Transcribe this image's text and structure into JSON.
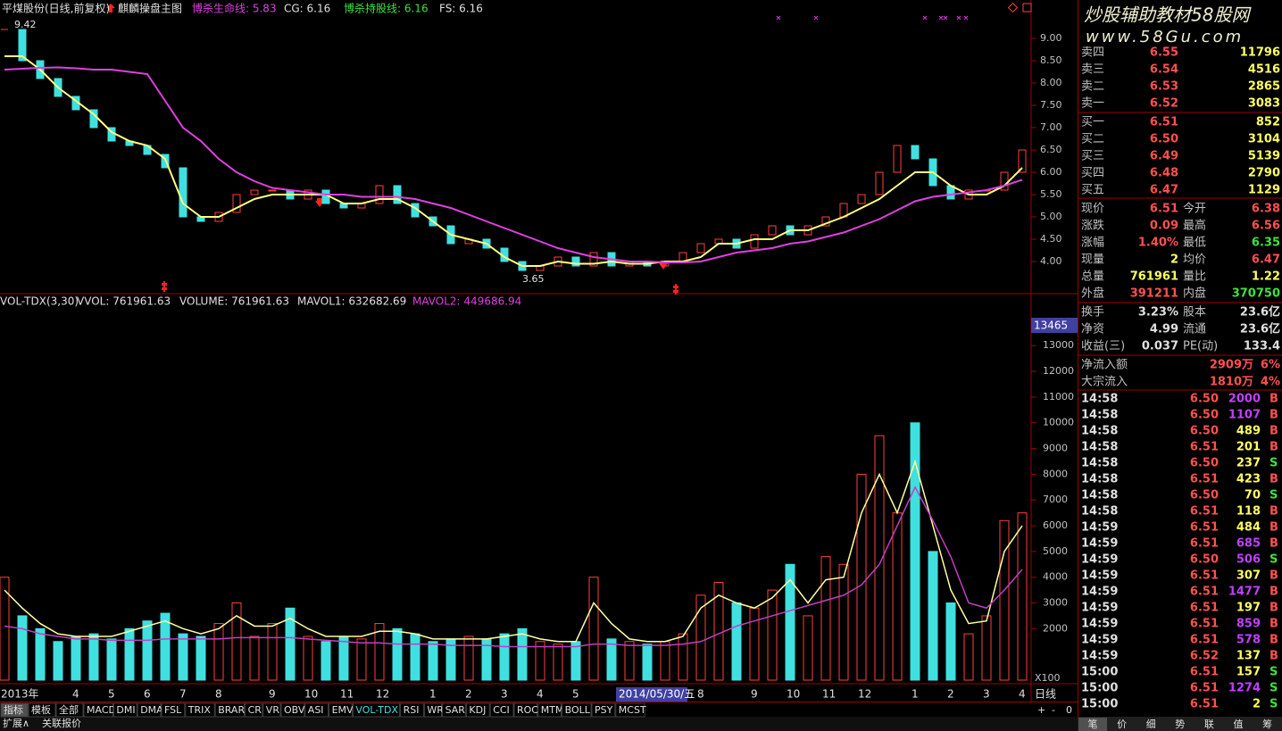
{
  "header": {
    "title": "平煤股份(日线,前复权)",
    "items": [
      "麒麟操盘主图",
      "博杀生命线: 5.83",
      "CG: 6.16",
      "博杀持股线: 6.16",
      "FS: 6.16"
    ]
  },
  "volume_header": {
    "items": [
      "VOL-TDX(3,30)",
      "VVOL: 761961.63",
      "VOLUME: 761961.63",
      "MAVOL1: 632682.69",
      "MAVOL2: 449686.94"
    ]
  },
  "chart_data": [
    {
      "type": "candle-line",
      "ylim": [
        3.3,
        9.5
      ],
      "yticks": [
        {
          "value": 4,
          "label": "4.00"
        },
        {
          "value": 4.5,
          "label": "4.50"
        },
        {
          "value": 5,
          "label": "5.00"
        },
        {
          "value": 5.5,
          "label": "5.50"
        },
        {
          "value": 6,
          "label": "6.00"
        },
        {
          "value": 6.5,
          "label": "6.50"
        },
        {
          "value": 7,
          "label": "7.00"
        },
        {
          "value": 7.5,
          "label": "7.50"
        },
        {
          "value": 8,
          "label": "8.00"
        },
        {
          "value": 8.5,
          "label": "8.50"
        },
        {
          "value": 9,
          "label": "9.00"
        }
      ],
      "annotations": [
        "9.42",
        "3.65"
      ],
      "up_color": "#ff4040",
      "down_color": "#40e0e0",
      "series": [
        {
          "color": "#c0c0c0",
          "values": [
            9.2,
            8.5,
            8.1,
            7.7,
            7.4,
            7.0,
            6.7,
            6.6,
            6.4,
            6.1,
            5.0,
            4.9,
            5.1,
            5.5,
            5.6,
            5.6,
            5.4,
            5.6,
            5.3,
            5.2,
            5.3,
            5.7,
            5.3,
            5.0,
            4.8,
            4.4,
            4.5,
            4.3,
            4.0,
            3.8,
            3.9,
            4.1,
            3.9,
            4.2,
            3.9,
            4.0,
            3.9,
            4.0,
            4.2,
            4.4,
            4.5,
            4.3,
            4.6,
            4.8,
            4.6,
            4.8,
            5.0,
            5.3,
            5.5,
            6.0,
            6.6,
            6.3,
            5.7,
            5.4,
            5.6,
            5.6,
            6.0,
            6.5
          ]
        },
        {
          "color": "#ffff80",
          "values": [
            8.6,
            8.6,
            8.3,
            7.9,
            7.6,
            7.3,
            6.9,
            6.7,
            6.6,
            6.3,
            5.3,
            5.0,
            5.0,
            5.2,
            5.4,
            5.5,
            5.5,
            5.5,
            5.5,
            5.3,
            5.3,
            5.4,
            5.4,
            5.2,
            4.9,
            4.6,
            4.5,
            4.4,
            4.1,
            3.9,
            3.9,
            4.0,
            3.95,
            3.95,
            4.0,
            3.95,
            3.95,
            4.0,
            4.0,
            4.1,
            4.4,
            4.4,
            4.5,
            4.5,
            4.7,
            4.7,
            4.85,
            5.0,
            5.2,
            5.4,
            5.7,
            6.0,
            6.0,
            5.7,
            5.5,
            5.5,
            5.7,
            6.1
          ]
        },
        {
          "color": "#e040e0",
          "values": [
            8.3,
            8.32,
            8.34,
            8.35,
            8.33,
            8.3,
            8.3,
            8.25,
            8.2,
            7.6,
            7.0,
            6.7,
            6.3,
            6.0,
            5.8,
            5.65,
            5.6,
            5.55,
            5.5,
            5.5,
            5.45,
            5.45,
            5.45,
            5.4,
            5.3,
            5.2,
            5.05,
            4.9,
            4.75,
            4.6,
            4.45,
            4.3,
            4.2,
            4.1,
            4.05,
            4.0,
            4.0,
            3.98,
            3.98,
            4.0,
            4.1,
            4.2,
            4.25,
            4.3,
            4.4,
            4.45,
            4.55,
            4.65,
            4.8,
            4.95,
            5.15,
            5.35,
            5.45,
            5.5,
            5.55,
            5.6,
            5.7,
            5.83
          ]
        }
      ]
    },
    {
      "type": "bar",
      "ylim": [
        0,
        14500
      ],
      "yticks": [
        2000,
        3000,
        4000,
        5000,
        6000,
        7000,
        8000,
        9000,
        10000,
        11000,
        12000,
        13000
      ],
      "categories": [
        "2013年",
        null,
        null,
        null,
        "4",
        null,
        "5",
        null,
        "6",
        null,
        "7",
        null,
        "8",
        null,
        null,
        "9",
        null,
        "10",
        null,
        "11",
        null,
        "12",
        null,
        null,
        "1",
        null,
        "2",
        null,
        "3",
        null,
        "4",
        null,
        "5",
        null,
        null,
        null,
        null,
        null,
        null,
        "8",
        null,
        null,
        "9",
        null,
        "10",
        null,
        "11",
        null,
        "12",
        null,
        null,
        "1",
        null,
        "2",
        null,
        "3",
        null,
        "4"
      ],
      "values": [
        4000,
        2500,
        2000,
        1500,
        1700,
        1800,
        1600,
        2000,
        2300,
        2600,
        1800,
        1700,
        2200,
        3000,
        1700,
        2200,
        2800,
        1700,
        1500,
        1700,
        1600,
        2200,
        2000,
        1800,
        1500,
        1600,
        1700,
        1600,
        1800,
        2000,
        1500,
        1400,
        1500,
        4000,
        1600,
        1500,
        1400,
        1500,
        1800,
        3300,
        3800,
        3000,
        2800,
        3500,
        4500,
        2500,
        4800,
        4500,
        8000,
        9500,
        6500,
        10000,
        5000,
        3000,
        1800,
        2500,
        6200,
        6500
      ],
      "series": [
        {
          "color": "#ffffa0",
          "values": [
            3500,
            2800,
            2200,
            1800,
            1700,
            1700,
            1700,
            1900,
            2100,
            2300,
            2000,
            1800,
            2000,
            2500,
            2100,
            2100,
            2400,
            2000,
            1700,
            1700,
            1700,
            1900,
            1900,
            1800,
            1600,
            1600,
            1600,
            1600,
            1700,
            1800,
            1600,
            1500,
            1500,
            3000,
            2200,
            1600,
            1500,
            1500,
            1700,
            2800,
            3300,
            3000,
            2800,
            3200,
            3900,
            3000,
            3900,
            4000,
            6500,
            8000,
            6500,
            8500,
            6000,
            3500,
            2200,
            2300,
            5000,
            6000
          ]
        },
        {
          "color": "#c040c0",
          "values": [
            2100,
            2000,
            1800,
            1700,
            1600,
            1600,
            1550,
            1550,
            1550,
            1600,
            1600,
            1600,
            1600,
            1650,
            1650,
            1650,
            1650,
            1600,
            1550,
            1500,
            1450,
            1450,
            1400,
            1400,
            1400,
            1350,
            1350,
            1350,
            1300,
            1300,
            1300,
            1300,
            1300,
            1400,
            1400,
            1350,
            1350,
            1350,
            1400,
            1500,
            1800,
            2100,
            2300,
            2500,
            2700,
            2900,
            3100,
            3300,
            3700,
            4500,
            6000,
            7500,
            6200,
            4800,
            3000,
            2800,
            3500,
            4300
          ]
        }
      ]
    }
  ],
  "cursor_date": "2014/05/30/五",
  "cursor_value": "13465",
  "unit": "X100",
  "period": "日线",
  "tabs": [
    "指标",
    "模板",
    "全部",
    "MACD",
    "DMI",
    "DMA",
    "FSL",
    "TRIX",
    "BRAR",
    "CR",
    "VR",
    "OBV",
    "ASI",
    "EMV",
    "VOL-TDX",
    "RSI",
    "WR",
    "SAR",
    "KDJ",
    "CCI",
    "ROC",
    "MTM",
    "BOLL",
    "PSY",
    "MCST"
  ],
  "controls": [
    "+",
    "-",
    "0"
  ],
  "footer": [
    "扩展∧",
    "关联报价"
  ],
  "watermark": {
    "title": "炒股辅助教材58股网",
    "url": "www.58Gu.com"
  },
  "order_book": [
    [
      "卖四",
      "6.55",
      "11796"
    ],
    [
      "卖三",
      "6.54",
      "4516"
    ],
    [
      "卖二",
      "6.53",
      "2865"
    ],
    [
      "卖一",
      "6.52",
      "3083"
    ],
    [
      "买一",
      "6.51",
      "852"
    ],
    [
      "买二",
      "6.50",
      "3104"
    ],
    [
      "买三",
      "6.49",
      "5139"
    ],
    [
      "买四",
      "6.48",
      "2790"
    ],
    [
      "买五",
      "6.47",
      "1129"
    ]
  ],
  "stats": [
    [
      "现价",
      "6.51",
      "今开",
      "6.38"
    ],
    [
      "涨跌",
      "0.09",
      "最高",
      "6.56"
    ],
    [
      "涨幅",
      "1.40%",
      "最低",
      "6.35"
    ],
    [
      "现量",
      "2",
      "均价",
      "6.47"
    ],
    [
      "总量",
      "761961",
      "量比",
      "1.22"
    ],
    [
      "外盘",
      "391211",
      "内盘",
      "370750"
    ]
  ],
  "fundamentals": [
    [
      "换手",
      "3.23%",
      "股本",
      "23.6亿"
    ],
    [
      "净资",
      "4.99",
      "流通",
      "23.6亿"
    ],
    [
      "收益(三)",
      "0.037",
      "PE(动)",
      "133.4"
    ]
  ],
  "flows": [
    [
      "净流入额",
      "2909万",
      "6%"
    ],
    [
      "大宗流入",
      "1810万",
      "4%"
    ]
  ],
  "ticks": [
    [
      "14:58",
      "6.50",
      "2000",
      "B"
    ],
    [
      "14:58",
      "6.50",
      "1107",
      "B"
    ],
    [
      "14:58",
      "6.50",
      "489",
      "B"
    ],
    [
      "14:58",
      "6.51",
      "201",
      "B"
    ],
    [
      "14:58",
      "6.50",
      "237",
      "S"
    ],
    [
      "14:58",
      "6.51",
      "423",
      "B"
    ],
    [
      "14:58",
      "6.50",
      "70",
      "S"
    ],
    [
      "14:58",
      "6.51",
      "118",
      "B"
    ],
    [
      "14:59",
      "6.51",
      "484",
      "B"
    ],
    [
      "14:59",
      "6.51",
      "685",
      "B"
    ],
    [
      "14:59",
      "6.50",
      "506",
      "S"
    ],
    [
      "14:59",
      "6.51",
      "307",
      "B"
    ],
    [
      "14:59",
      "6.51",
      "1477",
      "B"
    ],
    [
      "14:59",
      "6.51",
      "197",
      "B"
    ],
    [
      "14:59",
      "6.51",
      "859",
      "B"
    ],
    [
      "14:59",
      "6.51",
      "578",
      "B"
    ],
    [
      "14:59",
      "6.52",
      "137",
      "B"
    ],
    [
      "15:00",
      "6.51",
      "157",
      "S"
    ],
    [
      "15:00",
      "6.51",
      "1274",
      "S"
    ],
    [
      "15:00",
      "6.51",
      "2",
      "S"
    ]
  ],
  "side_tabs": [
    "笔",
    "价",
    "细",
    "势",
    "联",
    "值",
    "筹"
  ]
}
